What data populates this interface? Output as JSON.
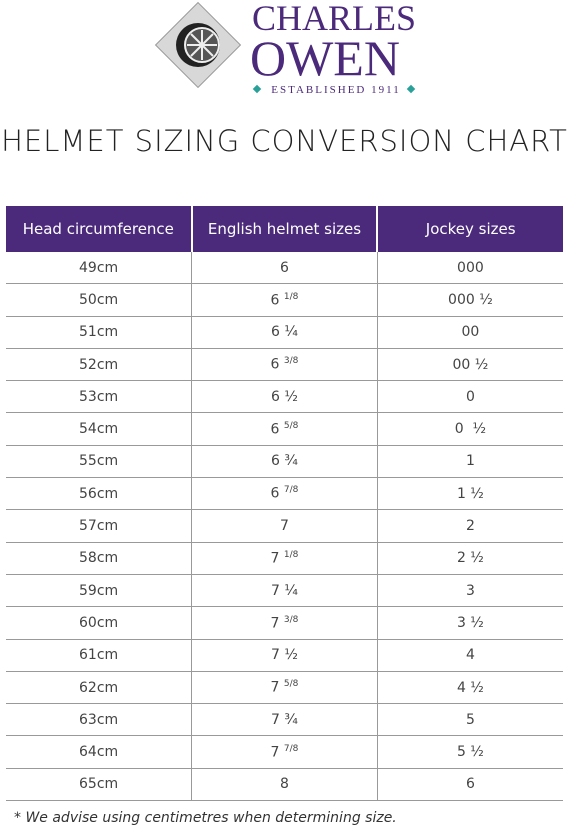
{
  "brand": {
    "name_line1": "CHARLES",
    "name_line2": "OWEN",
    "established": "ESTABLISHED 1911"
  },
  "title": "HELMET SIZING CONVERSION CHART",
  "table": {
    "headers": [
      "Head circumference",
      "English helmet sizes",
      "Jockey sizes"
    ],
    "rows": [
      {
        "cm": "49cm",
        "english": "6",
        "jockey": "000"
      },
      {
        "cm": "50cm",
        "english": "6",
        "english_fraction": "1/8",
        "jockey": "000 ½"
      },
      {
        "cm": "51cm",
        "english": "6 ¼",
        "jockey": "00"
      },
      {
        "cm": "52cm",
        "english": "6",
        "english_fraction": "3/8",
        "jockey": "00 ½"
      },
      {
        "cm": "53cm",
        "english": "6 ½",
        "jockey": "0"
      },
      {
        "cm": "54cm",
        "english": "6",
        "english_fraction": "5/8",
        "jockey": "0  ½"
      },
      {
        "cm": "55cm",
        "english": "6 ¾",
        "jockey": "1"
      },
      {
        "cm": "56cm",
        "english": "6",
        "english_fraction": "7/8",
        "jockey": "1 ½"
      },
      {
        "cm": "57cm",
        "english": "7",
        "jockey": "2"
      },
      {
        "cm": "58cm",
        "english": "7",
        "english_fraction": "1/8",
        "jockey": "2 ½"
      },
      {
        "cm": "59cm",
        "english": "7 ¼",
        "jockey": "3"
      },
      {
        "cm": "60cm",
        "english": "7",
        "english_fraction": "3/8",
        "jockey": "3 ½"
      },
      {
        "cm": "61cm",
        "english": "7 ½",
        "jockey": "4"
      },
      {
        "cm": "62cm",
        "english": "7",
        "english_fraction": "5/8",
        "jockey": "4 ½"
      },
      {
        "cm": "63cm",
        "english": "7 ¾",
        "jockey": "5"
      },
      {
        "cm": "64cm",
        "english": "7",
        "english_fraction": "7/8",
        "jockey": "5 ½"
      },
      {
        "cm": "65cm",
        "english": "8",
        "jockey": "6"
      }
    ]
  },
  "footnote": "* We advise using centimetres when determining size."
}
